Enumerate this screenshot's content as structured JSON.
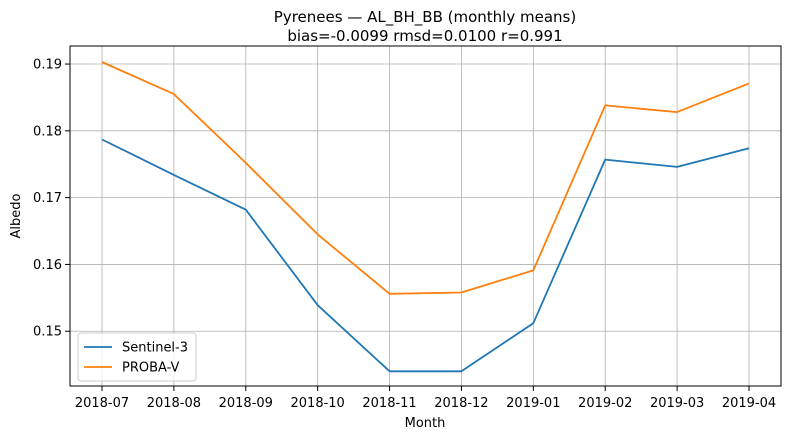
{
  "chart_data": {
    "type": "line",
    "title_line1": "Pyrenees — AL_BH_BB (monthly means)",
    "title_line2": "bias=-0.0099  rmsd=0.0100  r=0.991",
    "xlabel": "Month",
    "ylabel": "Albedo",
    "categories": [
      "2018-07",
      "2018-08",
      "2018-09",
      "2018-10",
      "2018-11",
      "2018-12",
      "2019-01",
      "2019-02",
      "2019-03",
      "2019-04"
    ],
    "y_ticks": [
      0.15,
      0.16,
      0.17,
      0.18,
      0.19
    ],
    "y_tick_labels": [
      "0.15",
      "0.16",
      "0.17",
      "0.18",
      "0.19"
    ],
    "ylim": [
      0.1418,
      0.1927
    ],
    "grid": true,
    "legend_position": "lower-left",
    "series": [
      {
        "name": "Sentinel-3",
        "color": "#1f77b4",
        "values": [
          0.1787,
          0.1734,
          0.1682,
          0.1539,
          0.144,
          0.144,
          0.1512,
          0.1757,
          0.1746,
          0.1774
        ]
      },
      {
        "name": "PROBA-V",
        "color": "#ff7f0e",
        "values": [
          0.1903,
          0.1855,
          0.1752,
          0.1645,
          0.1556,
          0.1558,
          0.1591,
          0.1838,
          0.1828,
          0.1871
        ]
      }
    ]
  }
}
